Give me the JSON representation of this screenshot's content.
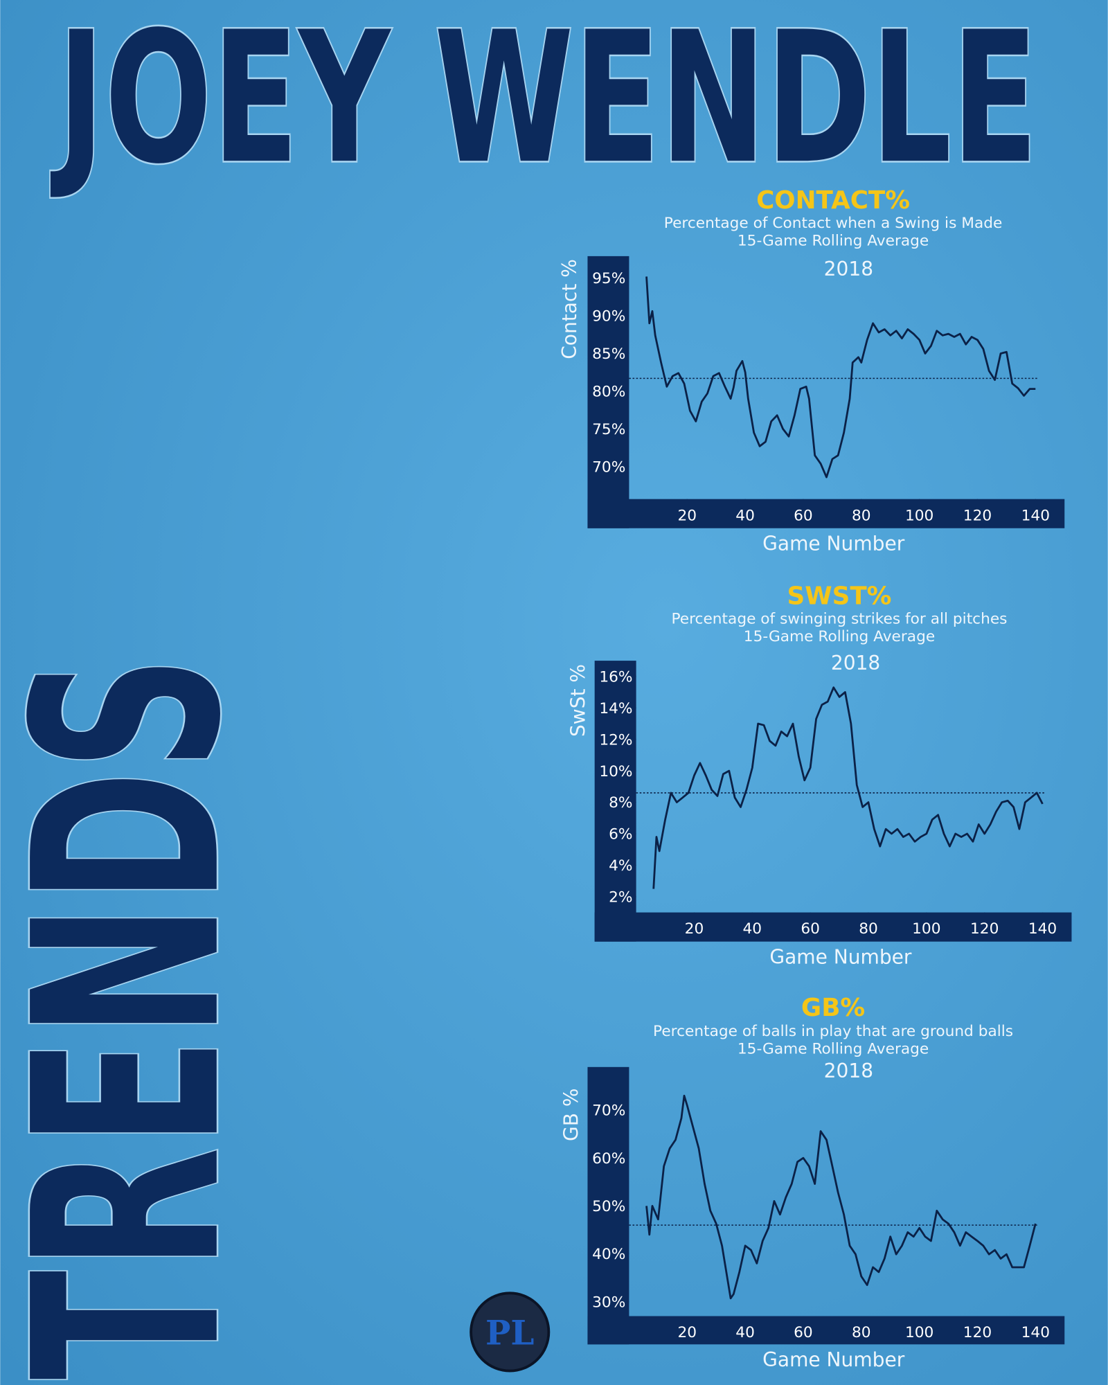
{
  "header": {
    "name": "JOEY WENDLE",
    "side": "TRENDS",
    "logo": "PL"
  },
  "chart_data": [
    {
      "type": "line",
      "title": "CONTACT%",
      "subtitle": [
        "Percentage of Contact when a Swing is Made",
        "15-Game Rolling Average"
      ],
      "annotation": "2018",
      "xlabel": "Game Number",
      "ylabel": "Contact %",
      "color": "#0b2147",
      "average": 81.7,
      "xlim": [
        0,
        150
      ],
      "ylim": [
        65.7,
        97.9
      ],
      "xticks": [
        20,
        40,
        60,
        80,
        100,
        120,
        140
      ],
      "yticks": [
        {
          "value": 70,
          "label": "70%"
        },
        {
          "value": 75,
          "label": "75%"
        },
        {
          "value": 80,
          "label": "80%"
        },
        {
          "value": 85,
          "label": "85%"
        },
        {
          "value": 90,
          "label": "90%"
        },
        {
          "value": 95,
          "label": "95%"
        }
      ],
      "x": [
        6,
        7,
        8,
        9,
        11,
        13,
        15,
        17,
        19,
        21,
        23,
        25,
        27,
        29,
        31,
        33,
        35,
        36,
        37,
        39,
        40,
        41,
        43,
        45,
        47,
        49,
        51,
        53,
        55,
        57,
        59,
        61,
        62,
        64,
        66,
        68,
        70,
        72,
        74,
        76,
        77,
        79,
        80,
        82,
        84,
        86,
        88,
        90,
        92,
        94,
        96,
        98,
        100,
        102,
        104,
        106,
        108,
        110,
        112,
        114,
        116,
        118,
        120,
        122,
        124,
        126,
        128,
        130,
        132,
        134,
        136,
        138,
        140
      ],
      "values": [
        95.2,
        89,
        90.6,
        87.4,
        83.8,
        80.6,
        82,
        82.4,
        81,
        77.4,
        76,
        78.6,
        79.7,
        82,
        82.4,
        80.6,
        79,
        80.5,
        82.7,
        84,
        82.5,
        79,
        74.5,
        72.7,
        73.3,
        76,
        76.8,
        75,
        74,
        76.8,
        80.3,
        80.6,
        79,
        71.5,
        70.4,
        68.6,
        71,
        71.5,
        74.5,
        79,
        83.8,
        84.5,
        83.8,
        86.8,
        89,
        87.8,
        88.2,
        87.4,
        88,
        87,
        88.2,
        87.6,
        86.8,
        85,
        86,
        88,
        87.4,
        87.6,
        87.2,
        87.6,
        86.2,
        87.2,
        86.8,
        85.6,
        82.7,
        81.5,
        85,
        85.2,
        81,
        80.4,
        79.4,
        80.3,
        80.3
      ]
    },
    {
      "type": "line",
      "title": "SWST%",
      "subtitle": [
        "Percentage of swinging strikes for all pitches",
        "15-Game Rolling Average"
      ],
      "annotation": "2018",
      "xlabel": "Game Number",
      "ylabel": "SwSt %",
      "color": "#0b2147",
      "average": 8.6,
      "xlim": [
        0,
        150
      ],
      "ylim": [
        1,
        17
      ],
      "xticks": [
        20,
        40,
        60,
        80,
        100,
        120,
        140
      ],
      "yticks": [
        {
          "value": 2,
          "label": "2%"
        },
        {
          "value": 4,
          "label": "4%"
        },
        {
          "value": 6,
          "label": "6%"
        },
        {
          "value": 8,
          "label": "8%"
        },
        {
          "value": 10,
          "label": "10%"
        },
        {
          "value": 12,
          "label": "12%"
        },
        {
          "value": 14,
          "label": "14%"
        },
        {
          "value": 16,
          "label": "16%"
        }
      ],
      "x": [
        6,
        7,
        8,
        10,
        12,
        14,
        16,
        18,
        20,
        22,
        24,
        26,
        28,
        30,
        32,
        34,
        36,
        38,
        40,
        42,
        44,
        46,
        48,
        50,
        52,
        54,
        56,
        58,
        60,
        62,
        64,
        66,
        68,
        70,
        72,
        74,
        76,
        78,
        80,
        82,
        84,
        86,
        88,
        90,
        92,
        94,
        96,
        98,
        100,
        102,
        104,
        106,
        108,
        110,
        112,
        114,
        116,
        118,
        120,
        122,
        124,
        126,
        128,
        130,
        132,
        134,
        136,
        138,
        140
      ],
      "values": [
        2.5,
        5.8,
        4.9,
        6.9,
        8.6,
        8.0,
        8.3,
        8.6,
        9.7,
        10.5,
        9.7,
        8.8,
        8.4,
        9.8,
        10,
        8.3,
        7.7,
        8.8,
        10.2,
        13,
        12.9,
        11.9,
        11.6,
        12.5,
        12.2,
        13,
        10.9,
        9.4,
        10.2,
        13.3,
        14.2,
        14.4,
        15.3,
        14.7,
        15,
        13,
        9.1,
        7.7,
        8,
        6.3,
        5.2,
        6.3,
        6,
        6.3,
        5.8,
        6,
        5.5,
        5.8,
        6,
        6.9,
        7.2,
        6,
        5.2,
        6,
        5.8,
        6,
        5.5,
        6.6,
        6,
        6.6,
        7.4,
        8,
        8.1,
        7.7,
        6.3,
        8,
        8.3,
        8.6,
        7.9
      ]
    },
    {
      "type": "line",
      "title": "GB%",
      "subtitle": [
        "Percentage of balls in play that are ground balls",
        "15-Game Rolling Average"
      ],
      "annotation": "2018",
      "xlabel": "Game Number",
      "ylabel": "GB %",
      "color": "#0b2147",
      "average": 46,
      "xlim": [
        0,
        150
      ],
      "ylim": [
        27,
        79
      ],
      "xticks": [
        20,
        40,
        60,
        80,
        100,
        120,
        140
      ],
      "yticks": [
        {
          "value": 30,
          "label": "30%"
        },
        {
          "value": 40,
          "label": "40%"
        },
        {
          "value": 50,
          "label": "50%"
        },
        {
          "value": 60,
          "label": "60%"
        },
        {
          "value": 70,
          "label": "70%"
        }
      ],
      "x": [
        6,
        7,
        8,
        10,
        12,
        14,
        16,
        18,
        19,
        20,
        22,
        24,
        26,
        28,
        30,
        32,
        34,
        35,
        36,
        38,
        40,
        42,
        44,
        46,
        48,
        50,
        52,
        54,
        56,
        58,
        60,
        62,
        64,
        66,
        68,
        70,
        72,
        74,
        76,
        78,
        80,
        82,
        84,
        86,
        88,
        90,
        92,
        94,
        96,
        98,
        100,
        102,
        104,
        106,
        108,
        110,
        112,
        114,
        116,
        118,
        120,
        122,
        124,
        126,
        128,
        130,
        132,
        134,
        136,
        138,
        140
      ],
      "values": [
        50,
        44,
        50,
        47.2,
        58.3,
        62,
        63.8,
        68.3,
        73,
        71,
        66.5,
        62,
        54.6,
        49,
        46.3,
        41.7,
        34.4,
        30.7,
        31.6,
        36.2,
        41.7,
        40.8,
        38,
        42.7,
        45.4,
        51,
        48.2,
        51.8,
        54.6,
        59.2,
        60,
        58.3,
        54.6,
        65.6,
        63.8,
        58.3,
        52.8,
        48.2,
        41.7,
        39.9,
        35.3,
        33.5,
        37.2,
        36.2,
        39,
        43.6,
        39.9,
        41.7,
        44.5,
        43.6,
        45.4,
        43.6,
        42.7,
        49,
        47.2,
        46.3,
        44.5,
        41.7,
        44.5,
        43.6,
        42.7,
        41.7,
        39.9,
        40.8,
        39,
        39.9,
        37.2,
        37.2,
        37.2,
        41.7,
        46.3
      ]
    }
  ]
}
